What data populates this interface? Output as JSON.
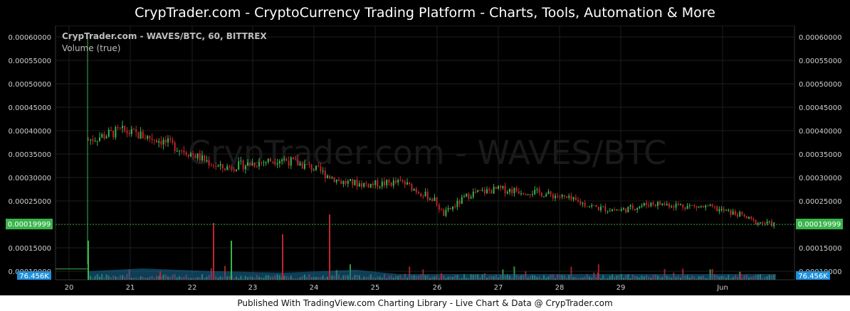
{
  "window": {
    "title": "CrypTrader.com  -  CryptoCurrency Trading Platform  -  Charts, Tools, Automation & More"
  },
  "chart": {
    "info_line": "CrypTrader.com - WAVES/BTC, 60, BITTREX",
    "volume_label": "Volume (true)",
    "watermark": "CrypTrader.com - WAVES/BTC",
    "current_price": "0.00019999",
    "volume_value": "76.456K",
    "y_ticks": [
      "0.00060000",
      "0.00055000",
      "0.00050000",
      "0.00045000",
      "0.00040000",
      "0.00035000",
      "0.00030000",
      "0.00025000",
      "0.00015000",
      "0.00010000"
    ],
    "x_ticks": [
      "20",
      "21",
      "22",
      "23",
      "24",
      "25",
      "26",
      "27",
      "28",
      "29",
      "Jun"
    ],
    "colors": {
      "up": "#39b54a",
      "down": "#c0262d",
      "volume_area": "#1a6f9c",
      "price_tag": "#39b54a",
      "volume_tag": "#1f8fd9"
    }
  },
  "chart_data": {
    "type": "candlestick",
    "title": "CrypTrader.com - WAVES/BTC, 60, BITTREX",
    "interval": "60",
    "exchange": "BITTREX",
    "symbol": "WAVES/BTC",
    "last_price": 0.00019999,
    "last_volume": "76.456K",
    "ylim": [
      0.0001,
      0.0006
    ],
    "x": [
      "20",
      "20.3",
      "21",
      "21.5",
      "22",
      "22.5",
      "23",
      "23.5",
      "24",
      "24.5",
      "25",
      "25.5",
      "26",
      "26.1",
      "26.5",
      "27",
      "27.5",
      "28",
      "28.5",
      "29",
      "29.5",
      "30",
      "30.5",
      "31",
      "Jun",
      "Jun 0.8"
    ],
    "close": [
      0.00011,
      0.00038,
      0.0004,
      0.00038,
      0.00035,
      0.00032,
      0.00033,
      0.00034,
      0.00032,
      0.00029,
      0.000285,
      0.00029,
      0.00025,
      0.00022,
      0.000265,
      0.000275,
      0.00027,
      0.00026,
      0.000235,
      0.00023,
      0.000245,
      0.00024,
      0.000235,
      0.00022,
      0.000205,
      0.00019999
    ],
    "grid": true,
    "legend": "none"
  }
}
